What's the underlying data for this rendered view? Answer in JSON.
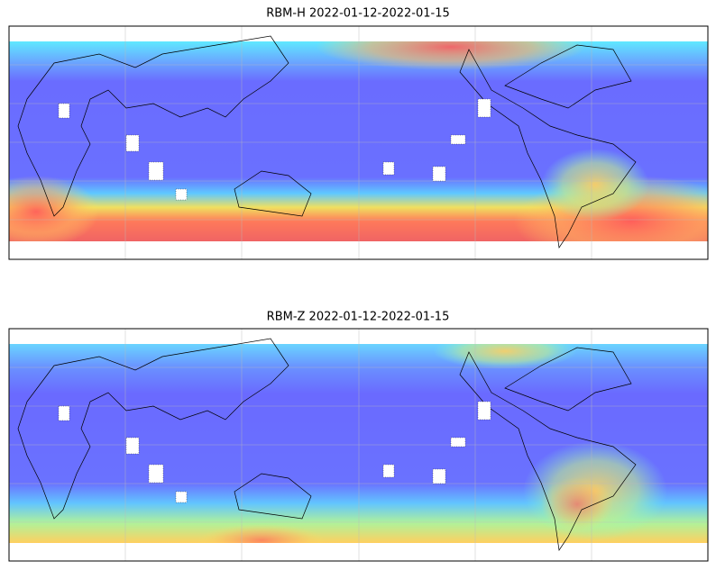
{
  "panels": [
    {
      "title": "RBM-H 2022-01-12-2022-01-15"
    },
    {
      "title": "RBM-Z 2022-01-12-2022-01-15"
    }
  ]
}
